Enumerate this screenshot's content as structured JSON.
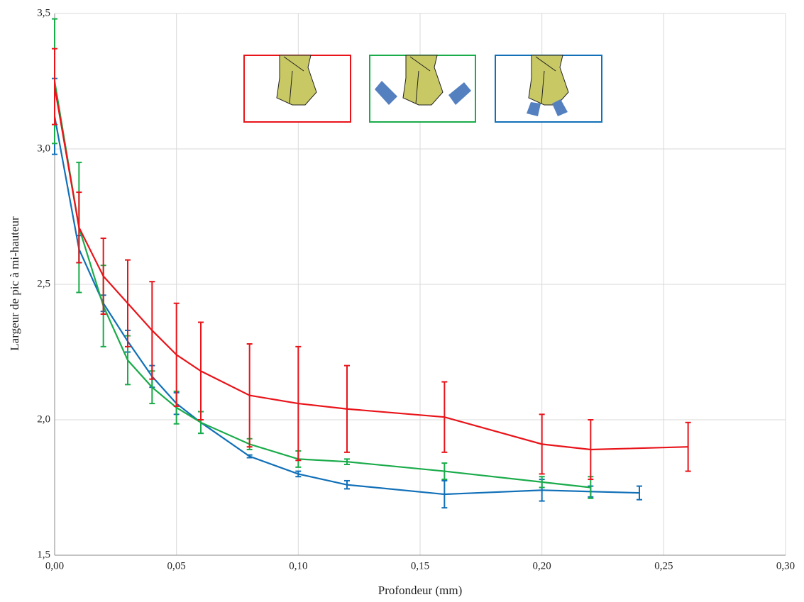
{
  "chart_data": {
    "type": "line",
    "xlabel": "Profondeur (mm)",
    "ylabel": "Largeur de pic à mi-hauteur",
    "xlim": [
      0,
      0.3
    ],
    "xticks": [
      {
        "value": 0,
        "label": "0,00"
      },
      {
        "value": 0.05,
        "label": "0,05"
      },
      {
        "value": 0.1,
        "label": "0,10"
      },
      {
        "value": 0.15,
        "label": "0,15"
      },
      {
        "value": 0.2,
        "label": "0,20"
      },
      {
        "value": 0.25,
        "label": "0,25"
      },
      {
        "value": 0.3,
        "label": "0,30"
      }
    ],
    "ylim": [
      1.5,
      3.5
    ],
    "yticks": [
      {
        "value": 1.5,
        "label": "1,5"
      },
      {
        "value": 2,
        "label": "2,0"
      },
      {
        "value": 2.5,
        "label": "2,5"
      },
      {
        "value": 3,
        "label": "3,0"
      },
      {
        "value": 3.5,
        "label": "3,5"
      }
    ],
    "grid": true,
    "series": [
      {
        "color": "#e8141a",
        "x": [
          0,
          0.01,
          0.02,
          0.03,
          0.04,
          0.05,
          0.06,
          0.08,
          0.1,
          0.12,
          0.16,
          0.2,
          0.22,
          0.26
        ],
        "values": [
          3.23,
          2.71,
          2.53,
          2.43,
          2.33,
          2.24,
          2.18,
          2.09,
          2.06,
          2.04,
          2.01,
          1.91,
          1.89,
          1.9
        ],
        "errors": [
          0.14,
          0.13,
          0.14,
          0.16,
          0.18,
          0.19,
          0.18,
          0.19,
          0.21,
          0.16,
          0.13,
          0.11,
          0.11,
          0.09
        ]
      },
      {
        "color": "#1aab4a",
        "x": [
          0,
          0.01,
          0.02,
          0.03,
          0.04,
          0.05,
          0.06,
          0.08,
          0.1,
          0.12,
          0.16,
          0.2,
          0.22
        ],
        "values": [
          3.25,
          2.71,
          2.42,
          2.22,
          2.12,
          2.045,
          1.99,
          1.91,
          1.855,
          1.845,
          1.81,
          1.77,
          1.75
        ],
        "errors": [
          0.23,
          0.24,
          0.15,
          0.09,
          0.06,
          0.06,
          0.04,
          0.02,
          0.03,
          0.01,
          0.03,
          0.02,
          0.04
        ]
      },
      {
        "color": "#1170b8",
        "x": [
          0,
          0.01,
          0.02,
          0.03,
          0.04,
          0.05,
          0.06,
          0.08,
          0.1,
          0.12,
          0.16,
          0.2,
          0.22,
          0.24
        ],
        "values": [
          3.12,
          2.63,
          2.43,
          2.29,
          2.16,
          2.06,
          1.99,
          1.865,
          1.8,
          1.76,
          1.725,
          1.74,
          1.735,
          1.73
        ],
        "errors": [
          0.14,
          0.05,
          0.03,
          0.04,
          0.04,
          0.04,
          0.04,
          0.005,
          0.01,
          0.015,
          0.05,
          0.04,
          0.02,
          0.025
        ]
      }
    ]
  }
}
